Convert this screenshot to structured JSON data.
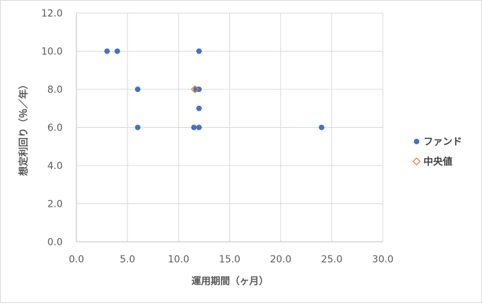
{
  "chart_data": {
    "type": "scatter",
    "title": "",
    "xlabel": "運用期間（ヶ月）",
    "ylabel": "想定利回り（％／年）",
    "xlim": [
      0,
      30
    ],
    "ylim": [
      0,
      12
    ],
    "x_ticks": [
      "0.0",
      "5.0",
      "10.0",
      "15.0",
      "20.0",
      "25.0",
      "30.0"
    ],
    "y_ticks": [
      "0.0",
      "2.0",
      "4.0",
      "6.0",
      "8.0",
      "10.0",
      "12.0"
    ],
    "grid": true,
    "legend_position": "right",
    "series": [
      {
        "name": "ファンド",
        "marker": "circle",
        "color": "#4472c4",
        "points": [
          {
            "x": 3,
            "y": 10
          },
          {
            "x": 4,
            "y": 10
          },
          {
            "x": 12,
            "y": 10
          },
          {
            "x": 6,
            "y": 8
          },
          {
            "x": 11.7,
            "y": 8
          },
          {
            "x": 12,
            "y": 8
          },
          {
            "x": 12,
            "y": 7
          },
          {
            "x": 6,
            "y": 6
          },
          {
            "x": 11.5,
            "y": 6
          },
          {
            "x": 12,
            "y": 6
          },
          {
            "x": 24,
            "y": 6
          }
        ]
      },
      {
        "name": "中央値",
        "marker": "diamond",
        "color": "#ed7d31",
        "points": [
          {
            "x": 11.6,
            "y": 8
          }
        ]
      }
    ]
  }
}
